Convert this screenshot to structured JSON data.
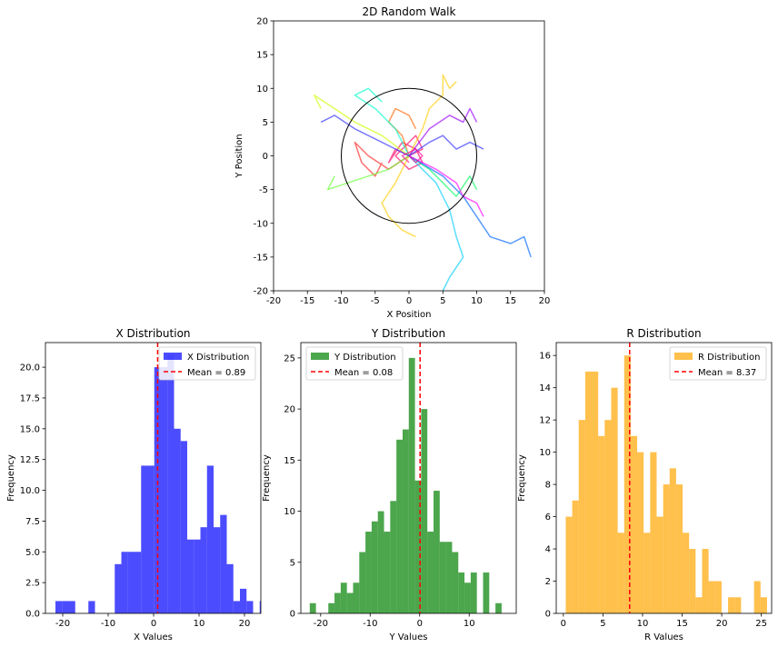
{
  "chart_data": [
    {
      "type": "line",
      "title": "2D Random Walk",
      "xlabel": "X Position",
      "ylabel": "Y Position",
      "xlim": [
        -20,
        20
      ],
      "ylim": [
        -20,
        20
      ],
      "xticks": [
        -20,
        -15,
        -10,
        -5,
        0,
        5,
        10,
        15,
        20
      ],
      "yticks": [
        -20,
        -15,
        -10,
        -5,
        0,
        5,
        10,
        15,
        20
      ],
      "grid": false,
      "legend": "none",
      "circle": {
        "cx": 0,
        "cy": 0,
        "r": 10,
        "color": "#000000"
      },
      "colors": [
        "#ff0066",
        "#ff2222",
        "#ff6600",
        "#ffcc00",
        "#ccff00",
        "#66ff33",
        "#00ff66",
        "#00ffcc",
        "#00ccff",
        "#0066ff",
        "#3333ff",
        "#9900ff",
        "#ff00ff",
        "#ff0099"
      ],
      "series": [
        {
          "color": "#ff0066",
          "points": [
            [
              0,
              0
            ],
            [
              -2,
              1
            ],
            [
              -3,
              -1
            ],
            [
              -1,
              2
            ],
            [
              1,
              1
            ],
            [
              2,
              -1
            ],
            [
              0,
              -2
            ],
            [
              -2,
              0
            ],
            [
              1,
              3
            ],
            [
              2,
              1
            ],
            [
              0,
              0
            ]
          ]
        },
        {
          "color": "#ff2222",
          "points": [
            [
              0,
              0
            ],
            [
              -3,
              -2
            ],
            [
              -6,
              0
            ],
            [
              -8,
              2
            ],
            [
              -7,
              -1
            ],
            [
              -5,
              -3
            ],
            [
              -4,
              -1
            ]
          ]
        },
        {
          "color": "#ff6600",
          "points": [
            [
              0,
              0
            ],
            [
              -1,
              3
            ],
            [
              -3,
              5
            ],
            [
              -2,
              7
            ],
            [
              0,
              6
            ],
            [
              1,
              4
            ]
          ]
        },
        {
          "color": "#ffcc00",
          "points": [
            [
              0,
              0
            ],
            [
              2,
              4
            ],
            [
              3,
              7
            ],
            [
              5,
              9
            ],
            [
              5,
              12
            ],
            [
              6,
              10
            ],
            [
              7,
              11
            ]
          ]
        },
        {
          "color": "#ffcc00",
          "points": [
            [
              0,
              0
            ],
            [
              -2,
              -4
            ],
            [
              -4,
              -7
            ],
            [
              -3,
              -9
            ],
            [
              -1,
              -11
            ],
            [
              1,
              -12
            ]
          ]
        },
        {
          "color": "#ccff00",
          "points": [
            [
              0,
              0
            ],
            [
              -4,
              3
            ],
            [
              -8,
              5
            ],
            [
              -11,
              7
            ],
            [
              -14,
              9
            ],
            [
              -13,
              7
            ]
          ]
        },
        {
          "color": "#66ff33",
          "points": [
            [
              0,
              0
            ],
            [
              -3,
              -2
            ],
            [
              -6,
              -3
            ],
            [
              -9,
              -4
            ],
            [
              -12,
              -5
            ],
            [
              -11,
              -3
            ]
          ]
        },
        {
          "color": "#00ff66",
          "points": [
            [
              0,
              0
            ],
            [
              3,
              -2
            ],
            [
              5,
              -4
            ],
            [
              7,
              -6
            ],
            [
              9,
              -3
            ],
            [
              10,
              -5
            ]
          ]
        },
        {
          "color": "#00ffcc",
          "points": [
            [
              0,
              0
            ],
            [
              -2,
              4
            ],
            [
              -5,
              7
            ],
            [
              -8,
              9
            ],
            [
              -6,
              10
            ],
            [
              -4,
              8
            ]
          ]
        },
        {
          "color": "#00ccff",
          "points": [
            [
              0,
              0
            ],
            [
              4,
              -4
            ],
            [
              6,
              -8
            ],
            [
              7,
              -12
            ],
            [
              8,
              -15
            ],
            [
              6,
              -18
            ],
            [
              5,
              -20
            ]
          ]
        },
        {
          "color": "#0066ff",
          "points": [
            [
              0,
              0
            ],
            [
              5,
              -3
            ],
            [
              8,
              -6
            ],
            [
              10,
              -9
            ],
            [
              12,
              -12
            ],
            [
              15,
              -13
            ],
            [
              17,
              -12
            ],
            [
              18,
              -15
            ]
          ]
        },
        {
          "color": "#3333ff",
          "points": [
            [
              0,
              0
            ],
            [
              3,
              2
            ],
            [
              5,
              3
            ],
            [
              7,
              1
            ],
            [
              9,
              2
            ],
            [
              11,
              1
            ]
          ]
        },
        {
          "color": "#3333ff",
          "points": [
            [
              0,
              0
            ],
            [
              -4,
              2
            ],
            [
              -8,
              4
            ],
            [
              -11,
              6
            ],
            [
              -13,
              5
            ]
          ]
        },
        {
          "color": "#9900ff",
          "points": [
            [
              0,
              0
            ],
            [
              3,
              4
            ],
            [
              6,
              6
            ],
            [
              8,
              5
            ],
            [
              9,
              7
            ],
            [
              10,
              5
            ]
          ]
        },
        {
          "color": "#ff00ff",
          "points": [
            [
              0,
              0
            ],
            [
              4,
              -2
            ],
            [
              7,
              -4
            ],
            [
              8,
              -6
            ],
            [
              10,
              -7
            ],
            [
              11,
              -9
            ]
          ]
        },
        {
          "color": "#ff0099",
          "points": [
            [
              0,
              0
            ],
            [
              1,
              -1
            ],
            [
              2,
              0
            ],
            [
              1,
              1
            ],
            [
              -1,
              0
            ],
            [
              0,
              -1
            ]
          ]
        }
      ]
    },
    {
      "type": "histogram",
      "title": "X Distribution",
      "xlabel": "X Values",
      "ylabel": "Frequency",
      "xlim": [
        -23.8,
        23.6
      ],
      "ylim": [
        0,
        22
      ],
      "xticks": [
        -20,
        -10,
        0,
        10,
        20
      ],
      "yticks": [
        0.0,
        2.5,
        5.0,
        7.5,
        10.0,
        12.5,
        15.0,
        17.5,
        20.0
      ],
      "ytick_labels": [
        "0.0",
        "2.5",
        "5.0",
        "7.5",
        "10.0",
        "12.5",
        "15.0",
        "17.5",
        "20.0"
      ],
      "bin_start": -21.6,
      "bin_width": 1.45,
      "values": [
        1,
        1,
        1,
        0,
        0,
        1,
        0,
        0,
        0,
        4,
        5,
        5,
        5,
        12,
        12,
        20,
        20,
        21,
        15,
        14,
        6,
        6,
        7,
        12,
        7,
        8,
        4,
        1,
        2,
        1,
        0,
        1
      ],
      "color": "#0000ff",
      "opacity": 0.7,
      "mean": 0.89,
      "legend": "top-right",
      "legend_entries": [
        "X Distribution",
        "Mean = 0.89"
      ]
    },
    {
      "type": "histogram",
      "title": "Y Distribution",
      "xlabel": "Y Values",
      "ylabel": "Frequency",
      "xlim": [
        -24,
        19.5
      ],
      "ylim": [
        0,
        26.5
      ],
      "xticks": [
        -20,
        -10,
        0,
        10
      ],
      "yticks": [
        0,
        5,
        10,
        15,
        20,
        25
      ],
      "ytick_labels": [
        "0",
        "5",
        "10",
        "15",
        "20",
        "25"
      ],
      "bin_start": -22.2,
      "bin_width": 1.25,
      "values": [
        1,
        0,
        0,
        1,
        2,
        3,
        2,
        3,
        6,
        8,
        9,
        10,
        8,
        11,
        17,
        18,
        25,
        13,
        20,
        8,
        12,
        7,
        7,
        6,
        4,
        3,
        4,
        0,
        4,
        0,
        1
      ],
      "color": "#008000",
      "opacity": 0.7,
      "mean": 0.08,
      "legend": "top-left",
      "legend_entries": [
        "Y Distribution",
        "Mean = 0.08"
      ]
    },
    {
      "type": "histogram",
      "title": "R Distribution",
      "xlabel": "R Values",
      "ylabel": "Frequency",
      "xlim": [
        -0.9,
        26.3
      ],
      "ylim": [
        0,
        16.8
      ],
      "xticks": [
        0,
        5,
        10,
        15,
        20,
        25
      ],
      "yticks": [
        0,
        2,
        4,
        6,
        8,
        10,
        12,
        14,
        16
      ],
      "ytick_labels": [
        "0",
        "2",
        "4",
        "6",
        "8",
        "10",
        "12",
        "14",
        "16"
      ],
      "bin_start": 0.3,
      "bin_width": 0.82,
      "values": [
        6,
        7,
        12,
        15,
        15,
        11,
        12,
        14,
        5,
        16,
        11,
        10,
        5,
        10,
        6,
        8,
        9,
        8,
        5,
        4,
        1,
        4,
        2,
        2,
        0,
        1,
        1,
        0,
        0,
        2,
        1
      ],
      "color": "#ffa500",
      "opacity": 0.7,
      "mean": 8.37,
      "legend": "top-right",
      "legend_entries": [
        "R Distribution",
        "Mean = 8.37"
      ]
    }
  ],
  "mean_line_color": "#ff0000"
}
